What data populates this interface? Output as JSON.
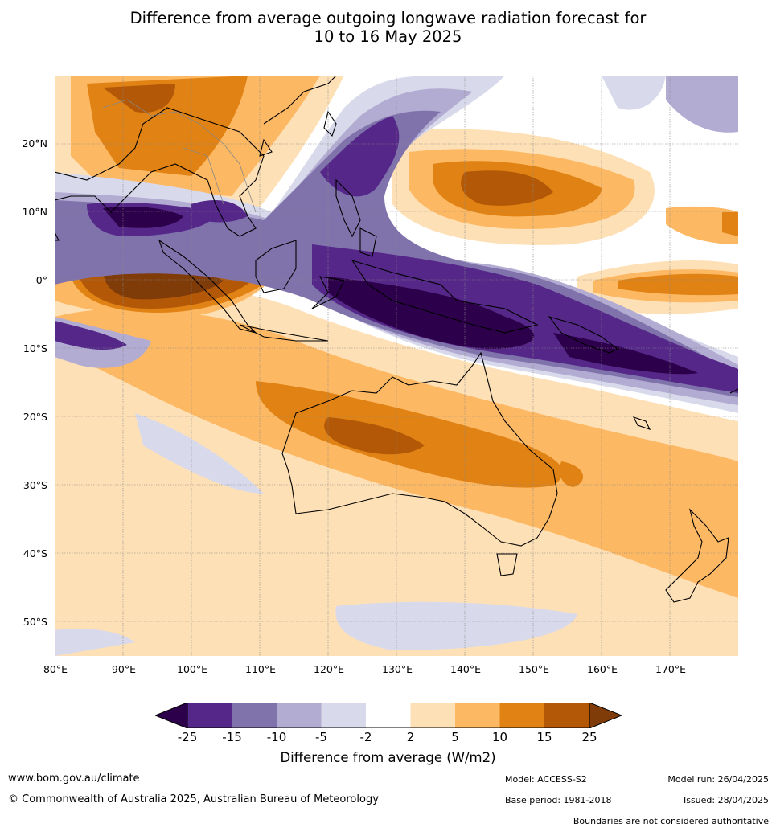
{
  "title_line1": "Difference from average outgoing longwave radiation forecast for",
  "title_line2": "10 to 16 May 2025",
  "lat_labels": [
    "20°N",
    "10°N",
    "0°",
    "10°S",
    "20°S",
    "30°S",
    "40°S",
    "50°S"
  ],
  "lon_labels": [
    "80°E",
    "90°E",
    "100°E",
    "110°E",
    "120°E",
    "130°E",
    "140°E",
    "150°E",
    "160°E",
    "170°E"
  ],
  "colorbar": {
    "ticks": [
      "-25",
      "-15",
      "-10",
      "-5",
      "-2",
      "2",
      "5",
      "10",
      "15",
      "25"
    ],
    "colors": [
      "#2d004b",
      "#542788",
      "#8073ac",
      "#b2abd2",
      "#d8daeb",
      "#ffffff",
      "#fee0b6",
      "#fdb863",
      "#e08214",
      "#b35806",
      "#7f3b08"
    ],
    "label": "Difference from average (W/m2)"
  },
  "footer": {
    "website": "www.bom.gov.au/climate",
    "copyright": "© Commonwealth of Australia 2025, Australian Bureau of Meteorology",
    "model": "Model: ACCESS-S2",
    "base_period": "Base period: 1981-2018",
    "model_run": "Model run: 26/04/2025",
    "issued": "Issued: 28/04/2025",
    "disclaimer": "Boundaries are not considered authoritative"
  }
}
